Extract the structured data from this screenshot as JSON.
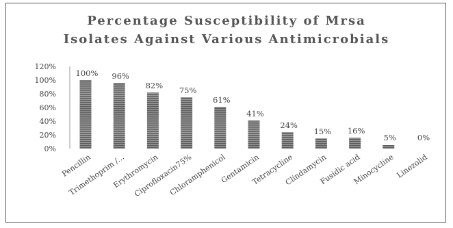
{
  "chart_data": {
    "type": "bar",
    "title_lines": [
      "Percentage  Susceptibility of Mrsa",
      "Isolates Against Various Antimicrobials"
    ],
    "categories": [
      "Pencillin",
      "Trimethoprim /...",
      "Erythromycin",
      "Ciprofloxacin75%",
      "Chloramphenicol",
      "Gentamicin",
      "Tetracycline",
      "Clindamycin",
      "Fusidic acid",
      "Minocycline",
      "Linezolid"
    ],
    "values": [
      100,
      96,
      82,
      75,
      61,
      41,
      24,
      15,
      16,
      5,
      0
    ],
    "value_labels": [
      "100%",
      "96%",
      "82%",
      "75%",
      "61%",
      "41%",
      "24%",
      "15%",
      "16%",
      "5%",
      "0%"
    ],
    "y_ticks": [
      "0%",
      "20%",
      "40%",
      "60%",
      "80%",
      "100%",
      "120%"
    ],
    "ylim": [
      0,
      120
    ],
    "xlabel": "",
    "ylabel": "",
    "grid": false,
    "legend": "none",
    "bar_color": "#7f7f7f",
    "bar_pattern": "horizontal-stripes"
  }
}
